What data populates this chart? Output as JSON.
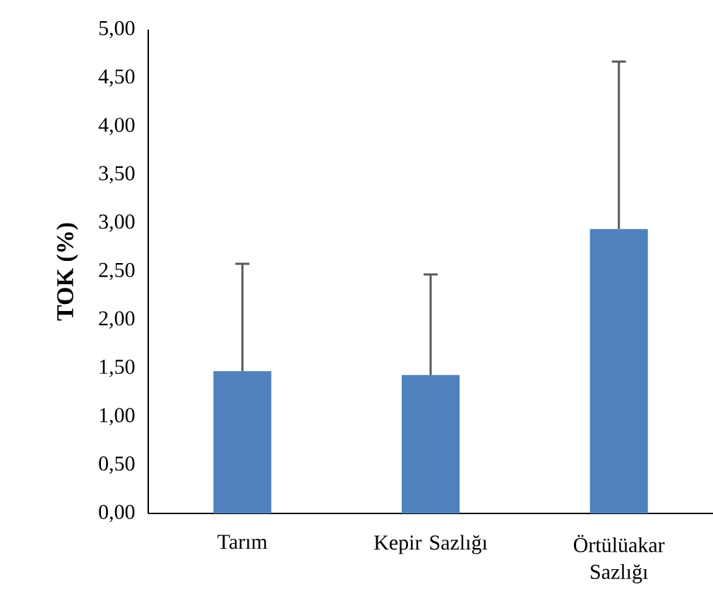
{
  "chart_data": {
    "type": "bar",
    "ylabel": "TOK (%)",
    "categories": [
      "Tarım",
      "Kepir Sazlığı",
      "Örtülüakar Sazlığı"
    ],
    "values": [
      1.47,
      1.43,
      2.94
    ],
    "errors": [
      [
        1.47,
        2.58
      ],
      [
        1.43,
        2.47
      ],
      [
        2.94,
        4.67
      ]
    ],
    "color": "#4f81bd",
    "ylim": [
      0,
      5
    ],
    "yticks": [
      {
        "value": 0,
        "label": "0,00"
      },
      {
        "value": 0.5,
        "label": "0,50"
      },
      {
        "value": 1,
        "label": "1,00"
      },
      {
        "value": 1.5,
        "label": "1,50"
      },
      {
        "value": 2,
        "label": "2,00"
      },
      {
        "value": 2.5,
        "label": "2,50"
      },
      {
        "value": 3,
        "label": "3,00"
      },
      {
        "value": 3.5,
        "label": "3,50"
      },
      {
        "value": 4,
        "label": "4,00"
      },
      {
        "value": 4.5,
        "label": "4,50"
      },
      {
        "value": 5,
        "label": "5,00"
      }
    ],
    "grid": false
  }
}
